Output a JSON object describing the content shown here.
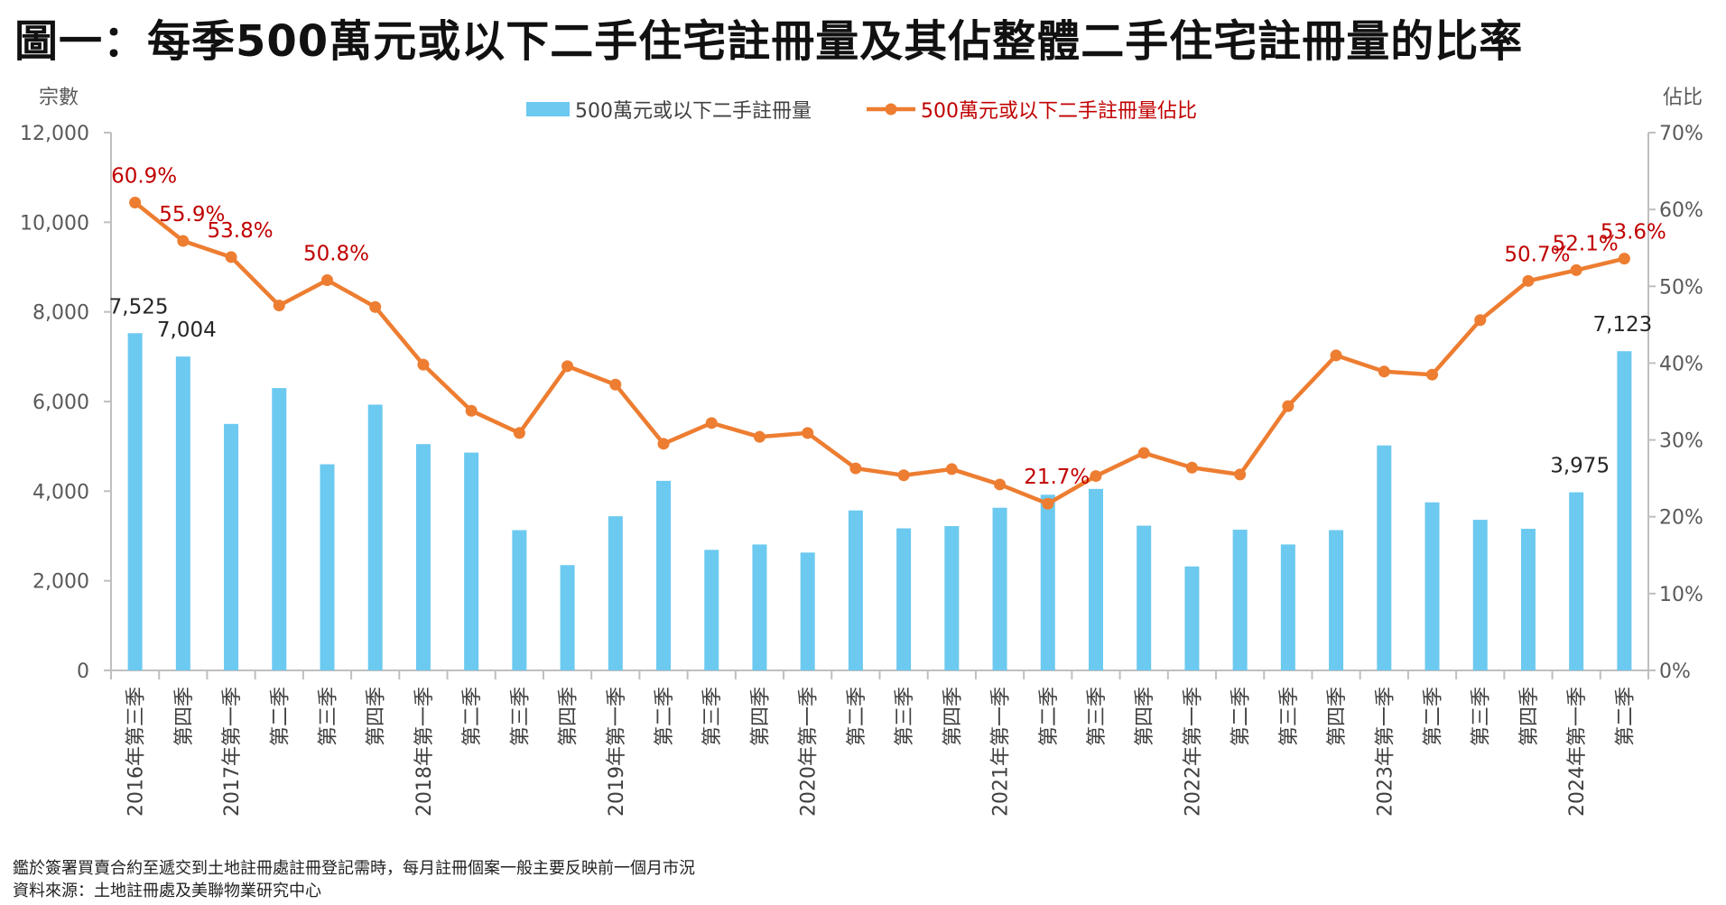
{
  "title": "圖一：每季500萬元或以下二手住宅註冊量及其佔整體二手住宅註冊量的比率",
  "footnotes": [
    "鑑於簽署買賣合約至遞交到土地註冊處註冊登記需時，每月註冊個案一般主要反映前一個月市況",
    "資料來源：土地註冊處及美聯物業研究中心"
  ],
  "chart_data": {
    "type": "bar",
    "left_axis": {
      "label": "宗數",
      "min": 0,
      "max": 12000,
      "ticks": [
        "0",
        "2,000",
        "4,000",
        "6,000",
        "8,000",
        "10,000",
        "12,000"
      ]
    },
    "right_axis": {
      "label": "佔比",
      "min": 0,
      "max": 70,
      "ticks": [
        "0%",
        "10%",
        "20%",
        "30%",
        "40%",
        "50%",
        "60%",
        "70%"
      ]
    },
    "legend_position": "top-center",
    "categories": [
      "2016年第三季",
      "第四季",
      "2017年第一季",
      "第二季",
      "第三季",
      "第四季",
      "2018年第一季",
      "第二季",
      "第三季",
      "第四季",
      "2019年第一季",
      "第二季",
      "第三季",
      "第四季",
      "2020年第一季",
      "第二季",
      "第三季",
      "第四季",
      "2021年第一季",
      "第二季",
      "第三季",
      "第四季",
      "2022年第一季",
      "第二季",
      "第三季",
      "第四季",
      "2023年第一季",
      "第二季",
      "第三季",
      "第四季",
      "2024年第一季",
      "第二季"
    ],
    "series": [
      {
        "name": "500萬元或以下二手註冊量",
        "type": "bar",
        "axis": "left",
        "color": "#6cc9f0",
        "values": [
          7525,
          7004,
          5500,
          6300,
          4600,
          5930,
          5050,
          4860,
          3130,
          2350,
          3440,
          4230,
          2690,
          2810,
          2630,
          3570,
          3170,
          3220,
          3630,
          3920,
          4050,
          3230,
          2320,
          3140,
          2810,
          3130,
          5020,
          3750,
          3360,
          3160,
          3975,
          7123
        ],
        "labels": [
          "7,525",
          "7,004",
          "",
          "",
          "",
          "",
          "",
          "",
          "",
          "",
          "",
          "",
          "",
          "",
          "",
          "",
          "",
          "",
          "",
          "",
          "",
          "",
          "",
          "",
          "",
          "",
          "",
          "",
          "",
          "",
          "3,975",
          "7,123"
        ]
      },
      {
        "name": "500萬元或以下二手註冊量佔比",
        "type": "line",
        "axis": "right",
        "color": "#ed7d31",
        "values": [
          60.9,
          55.9,
          53.8,
          47.5,
          50.8,
          47.3,
          39.8,
          33.8,
          30.9,
          39.6,
          37.2,
          29.5,
          32.2,
          30.4,
          30.9,
          26.3,
          25.4,
          26.2,
          24.2,
          21.7,
          25.3,
          28.3,
          26.4,
          25.5,
          34.4,
          41.0,
          38.9,
          38.5,
          45.6,
          50.7,
          52.1,
          53.6
        ],
        "labels": [
          "60.9%",
          "55.9%",
          "53.8%",
          "",
          "50.8%",
          "",
          "",
          "",
          "",
          "",
          "",
          "",
          "",
          "",
          "",
          "",
          "",
          "",
          "",
          "21.7%",
          "",
          "",
          "",
          "",
          "",
          "",
          "",
          "",
          "",
          "50.7%",
          "52.1%",
          "53.6%"
        ]
      }
    ]
  }
}
